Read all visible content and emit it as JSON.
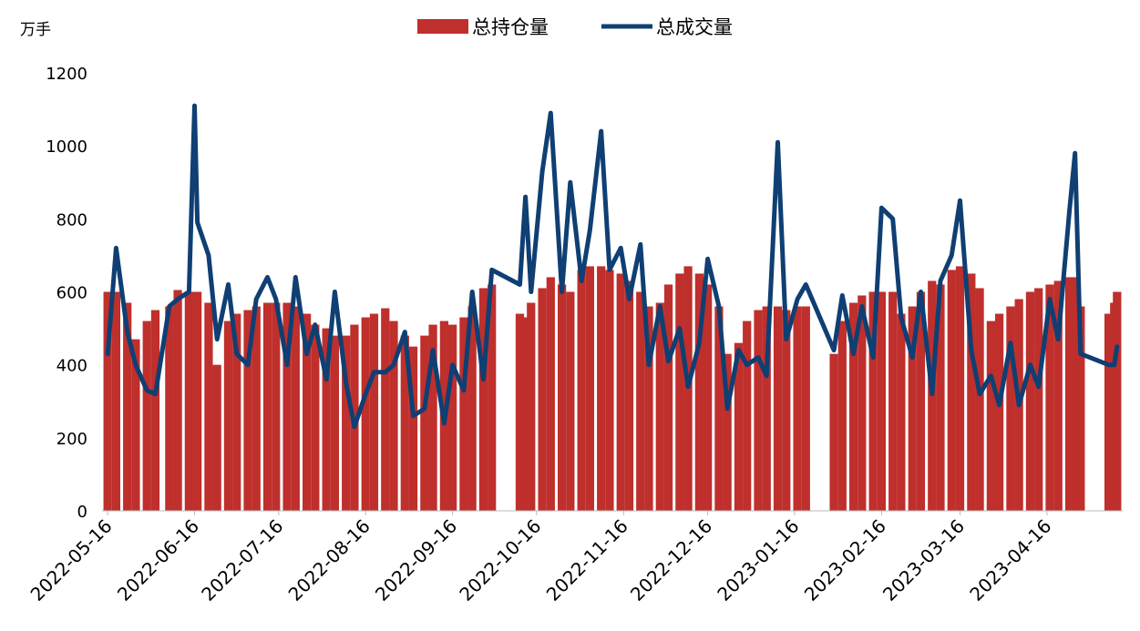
{
  "chart_data": {
    "type": "bar-line",
    "unit_label": "万手",
    "x": [
      "2022-05-16",
      "2022-05-19",
      "2022-05-23",
      "2022-05-26",
      "2022-05-30",
      "2022-06-02",
      "2022-06-07",
      "2022-06-10",
      "2022-06-14",
      "2022-06-16",
      "2022-06-17",
      "2022-06-21",
      "2022-06-24",
      "2022-06-28",
      "2022-07-01",
      "2022-07-05",
      "2022-07-08",
      "2022-07-12",
      "2022-07-15",
      "2022-07-19",
      "2022-07-22",
      "2022-07-26",
      "2022-07-29",
      "2022-08-02",
      "2022-08-05",
      "2022-08-09",
      "2022-08-12",
      "2022-08-16",
      "2022-08-19",
      "2022-08-23",
      "2022-08-26",
      "2022-08-30",
      "2022-09-02",
      "2022-09-06",
      "2022-09-09",
      "2022-09-13",
      "2022-09-16",
      "2022-09-20",
      "2022-09-23",
      "2022-09-27",
      "2022-09-30",
      "2022-10-10",
      "2022-10-12",
      "2022-10-14",
      "2022-10-18",
      "2022-10-21",
      "2022-10-25",
      "2022-10-28",
      "2022-11-01",
      "2022-11-04",
      "2022-11-08",
      "2022-11-11",
      "2022-11-15",
      "2022-11-18",
      "2022-11-22",
      "2022-11-25",
      "2022-11-29",
      "2022-12-02",
      "2022-12-06",
      "2022-12-09",
      "2022-12-13",
      "2022-12-16",
      "2022-12-20",
      "2022-12-23",
      "2022-12-27",
      "2022-12-30",
      "2023-01-03",
      "2023-01-06",
      "2023-01-10",
      "2023-01-13",
      "2023-01-17",
      "2023-01-20",
      "2023-01-30",
      "2023-02-02",
      "2023-02-06",
      "2023-02-09",
      "2023-02-13",
      "2023-02-16",
      "2023-02-20",
      "2023-02-23",
      "2023-02-27",
      "2023-03-02",
      "2023-03-06",
      "2023-03-09",
      "2023-03-13",
      "2023-03-16",
      "2023-03-20",
      "2023-03-23",
      "2023-03-27",
      "2023-03-30",
      "2023-04-03",
      "2023-04-06",
      "2023-04-10",
      "2023-04-13",
      "2023-04-17",
      "2023-04-20",
      "2023-04-24",
      "2023-04-26",
      "2023-04-28",
      "2023-05-08",
      "2023-05-10",
      "2023-05-11"
    ],
    "series": [
      {
        "name": "总持仓量",
        "kind": "bar",
        "color": "#bf2f2c",
        "values": [
          600,
          600,
          570,
          470,
          520,
          550,
          560,
          605,
          600,
          600,
          600,
          570,
          400,
          520,
          540,
          550,
          560,
          570,
          570,
          570,
          560,
          540,
          510,
          500,
          480,
          480,
          510,
          530,
          540,
          555,
          520,
          480,
          450,
          480,
          510,
          520,
          510,
          530,
          560,
          610,
          620,
          540,
          530,
          570,
          610,
          640,
          620,
          600,
          660,
          670,
          670,
          660,
          650,
          630,
          600,
          560,
          570,
          620,
          650,
          670,
          650,
          620,
          560,
          430,
          460,
          520,
          550,
          560,
          560,
          550,
          560,
          560,
          430,
          520,
          570,
          590,
          600,
          600,
          600,
          540,
          560,
          600,
          630,
          620,
          660,
          670,
          650,
          610,
          520,
          540,
          560,
          580,
          600,
          610,
          620,
          630,
          640,
          640,
          560,
          540,
          570,
          600
        ]
      },
      {
        "name": "总成交量",
        "kind": "line",
        "color": "#0f3f73",
        "values": [
          430,
          720,
          490,
          400,
          330,
          320,
          560,
          580,
          600,
          1110,
          790,
          700,
          470,
          620,
          430,
          400,
          580,
          640,
          580,
          400,
          640,
          430,
          510,
          360,
          600,
          350,
          230,
          320,
          380,
          380,
          400,
          490,
          260,
          280,
          440,
          240,
          400,
          330,
          600,
          360,
          660,
          620,
          860,
          600,
          930,
          1090,
          600,
          900,
          630,
          770,
          1040,
          660,
          720,
          580,
          730,
          400,
          560,
          410,
          500,
          340,
          460,
          690,
          560,
          280,
          440,
          400,
          420,
          370,
          1010,
          470,
          580,
          620,
          440,
          590,
          430,
          560,
          420,
          830,
          800,
          530,
          420,
          600,
          320,
          630,
          700,
          850,
          440,
          320,
          370,
          290,
          460,
          290,
          400,
          340,
          580,
          470,
          820,
          980,
          430,
          400,
          400,
          450
        ]
      }
    ],
    "xlim": [
      "2022-05-14",
      "2023-05-13"
    ],
    "xticks": [
      "2022-05-16",
      "2022-06-16",
      "2022-07-16",
      "2022-08-16",
      "2022-09-16",
      "2022-10-16",
      "2022-11-16",
      "2022-12-16",
      "2023-01-16",
      "2023-02-16",
      "2023-03-16",
      "2023-04-16"
    ],
    "ylim": [
      0,
      1200
    ],
    "yticks": [
      0,
      200,
      400,
      600,
      800,
      1000,
      1200
    ],
    "grid": false
  }
}
